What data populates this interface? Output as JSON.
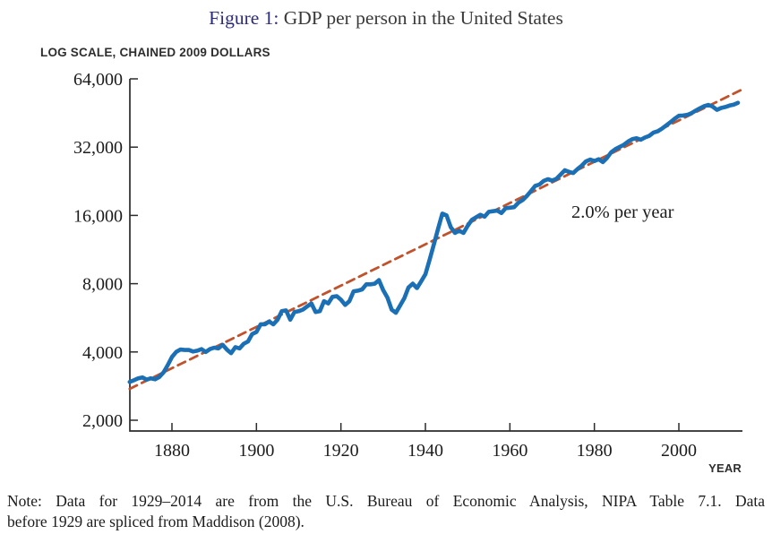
{
  "figure": {
    "title_prefix": "Figure 1:",
    "title_rest": " GDP per person in the United States",
    "scale_label": "LOG SCALE, CHAINED 2009 DOLLARS",
    "x_axis_label": "YEAR",
    "note_line1": "Note: Data for 1929–2014 are from the U.S. Bureau of Economic Analysis, NIPA Table 7.1.  Data",
    "note_line2": "before 1929 are spliced from Maddison (2008).",
    "accent_color": "#2d2b7e"
  },
  "chart_data": {
    "type": "line",
    "title": "Figure 1: GDP per person in the United States",
    "xlabel": "YEAR",
    "ylabel": "LOG SCALE, CHAINED 2009 DOLLARS",
    "y_scale": "log2",
    "ylim": [
      2000,
      64000
    ],
    "xlim": [
      1870,
      2015
    ],
    "grid": false,
    "legend": "none",
    "x_ticks": [
      1880,
      1900,
      1920,
      1940,
      1960,
      1980,
      2000
    ],
    "y_ticks": [
      {
        "value": 2000,
        "label": "2,000"
      },
      {
        "value": 4000,
        "label": "4,000"
      },
      {
        "value": 8000,
        "label": "8,000"
      },
      {
        "value": 16000,
        "label": "16,000"
      },
      {
        "value": 32000,
        "label": "32,000"
      },
      {
        "value": 64000,
        "label": "64,000"
      }
    ],
    "annotation": {
      "text": "2.0% per year",
      "anchor_year": 1990,
      "anchor_value": 16200
    },
    "series": [
      {
        "name": "GDP per person, chained 2009 dollars",
        "color": "#1b6fb5",
        "style": "solid",
        "line_width": 4.6,
        "start_year": 1870,
        "end_year": 2014,
        "values": [
          2950,
          3000,
          3060,
          3090,
          3020,
          3060,
          3030,
          3100,
          3250,
          3500,
          3800,
          4000,
          4100,
          4080,
          4080,
          4020,
          4050,
          4120,
          4000,
          4120,
          4180,
          4150,
          4300,
          4100,
          3950,
          4200,
          4150,
          4350,
          4450,
          4800,
          4900,
          5300,
          5300,
          5450,
          5300,
          5550,
          6050,
          6100,
          5550,
          6000,
          6050,
          6150,
          6350,
          6550,
          6000,
          6050,
          6700,
          6550,
          7000,
          7050,
          6800,
          6450,
          6700,
          7400,
          7450,
          7550,
          7950,
          7950,
          8000,
          8300,
          7500,
          6950,
          6150,
          5950,
          6400,
          6900,
          7700,
          8000,
          7650,
          8200,
          8800,
          10200,
          11900,
          14000,
          16300,
          16000,
          14200,
          13400,
          13700,
          13400,
          14400,
          15300,
          15700,
          16100,
          15800,
          16600,
          16700,
          16800,
          16400,
          17200,
          17300,
          17400,
          18200,
          18700,
          19500,
          20500,
          21600,
          21900,
          22700,
          23100,
          22800,
          23200,
          24200,
          25300,
          24900,
          24600,
          25600,
          26500,
          27700,
          28200,
          27800,
          28300,
          27500,
          28700,
          30400,
          31400,
          32100,
          32800,
          33900,
          34700,
          35000,
          34500,
          35300,
          35900,
          37100,
          37600,
          38600,
          39900,
          41200,
          42700,
          44000,
          44100,
          44400,
          45200,
          46400,
          47500,
          48500,
          49100,
          48300,
          46700,
          47600,
          48100,
          48800,
          49300,
          50200
        ]
      },
      {
        "name": "2.0% per year trend",
        "color": "#c0522c",
        "style": "dashed",
        "line_width": 2.8,
        "x": [
          1870,
          2015
        ],
        "y": [
          2750,
          57500
        ]
      }
    ]
  }
}
